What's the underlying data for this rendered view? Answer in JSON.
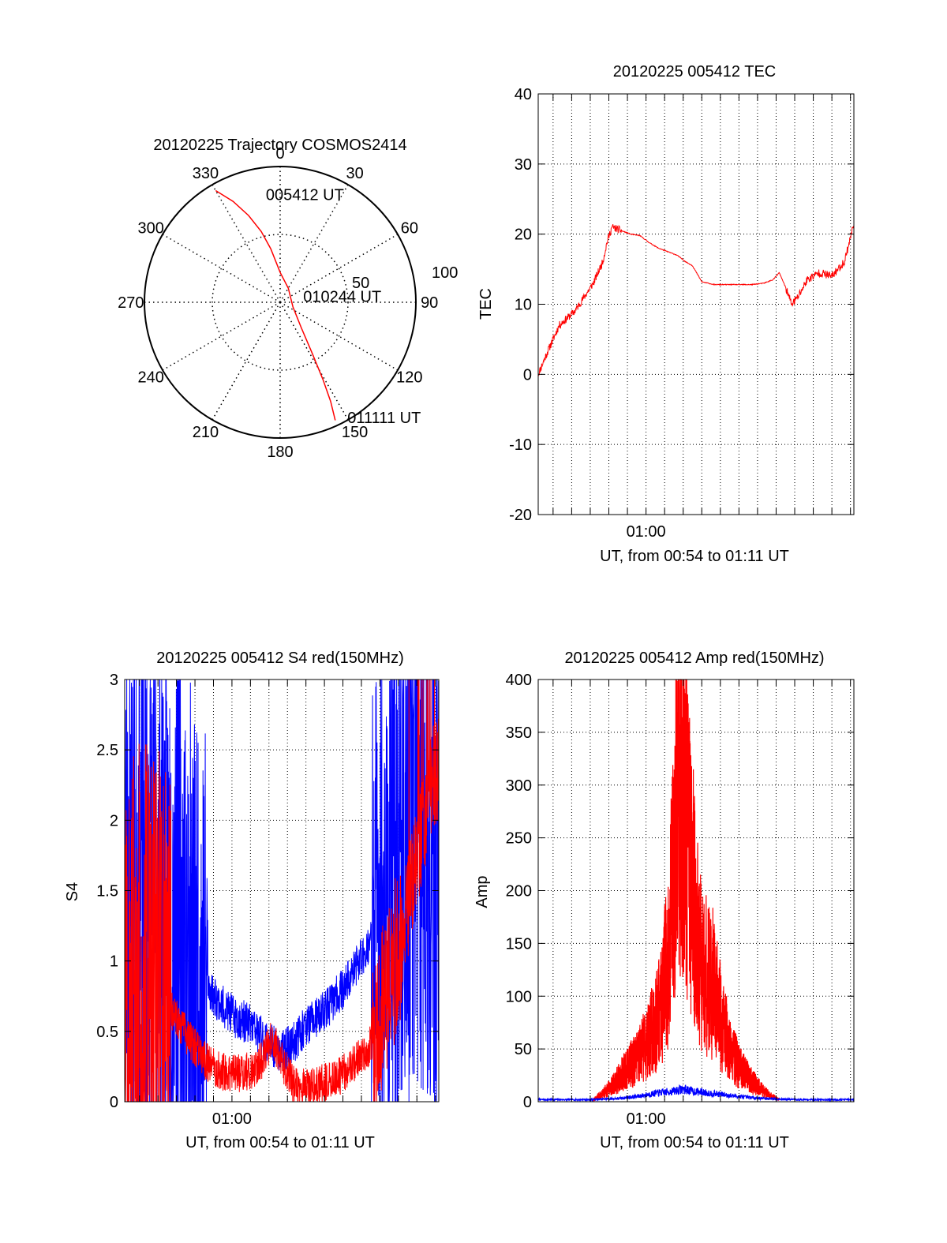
{
  "colors": {
    "red": "#ff0000",
    "blue": "#0000ff",
    "axis": "#000000"
  },
  "chart_data": [
    {
      "id": "trajectory",
      "type": "polar",
      "title": "20120225 Trajectory COSMOS2414",
      "angle_labels": [
        "0",
        "30",
        "60",
        "90",
        "120",
        "150",
        "180",
        "210",
        "240",
        "270",
        "300",
        "330"
      ],
      "radial_label": "50",
      "outer_radial_label": "100",
      "rlim": [
        0,
        100
      ],
      "grid": true,
      "series": [
        {
          "color": "red",
          "points": [
            {
              "az": 330,
              "r": 95
            },
            {
              "az": 335,
              "r": 82
            },
            {
              "az": 340,
              "r": 68
            },
            {
              "az": 345,
              "r": 54
            },
            {
              "az": 350,
              "r": 40
            },
            {
              "az": 0,
              "r": 22
            },
            {
              "az": 30,
              "r": 12
            },
            {
              "az": 110,
              "r": 10
            },
            {
              "az": 140,
              "r": 24
            },
            {
              "az": 148,
              "r": 45
            },
            {
              "az": 151,
              "r": 65
            },
            {
              "az": 153,
              "r": 82
            },
            {
              "az": 155,
              "r": 96
            }
          ]
        }
      ],
      "annotations": [
        {
          "text": "005412 UT",
          "az": 352,
          "r": 80
        },
        {
          "text": "010244 UT",
          "az": 75,
          "r": 17
        },
        {
          "text": "011111 UT",
          "az": 150,
          "r": 98
        }
      ]
    },
    {
      "id": "tec",
      "type": "line",
      "title": "20120225 005412 TEC",
      "ylabel": "TEC",
      "xlabel": "UT, from 00:54 to 01:11 UT",
      "x_tick_labels": [
        "01:00"
      ],
      "xlim": [
        "00:54:12",
        "01:11:11"
      ],
      "ylim": [
        -20,
        40
      ],
      "yticks": [
        -20,
        -10,
        0,
        10,
        20,
        30,
        40
      ],
      "grid": true,
      "series": [
        {
          "color": "red",
          "x": [
            "00:54:12",
            "00:54:40",
            "00:55:00",
            "00:55:20",
            "00:55:45",
            "00:56:10",
            "00:56:40",
            "00:57:10",
            "00:57:40",
            "00:57:55",
            "00:58:10",
            "00:58:40",
            "00:59:10",
            "00:59:40",
            "01:00:10",
            "01:00:40",
            "01:01:10",
            "01:01:40",
            "01:02:10",
            "01:02:30",
            "01:03:00",
            "01:03:40",
            "01:04:20",
            "01:05:00",
            "01:05:40",
            "01:06:20",
            "01:06:50",
            "01:07:10",
            "01:07:30",
            "01:07:50",
            "01:08:10",
            "01:08:40",
            "01:09:20",
            "01:10:00",
            "01:10:40",
            "01:11:11"
          ],
          "y": [
            0,
            3,
            5,
            7,
            8,
            9,
            11,
            13,
            16,
            19,
            21,
            20.5,
            20,
            19.8,
            18.8,
            18,
            17.5,
            17,
            16,
            15.5,
            13.2,
            12.8,
            12.8,
            12.8,
            12.8,
            13,
            13.5,
            14.5,
            12.5,
            10,
            11,
            13.5,
            14.5,
            14,
            16,
            21.5
          ]
        }
      ]
    },
    {
      "id": "s4",
      "type": "line",
      "title": "20120225 005412 S4 red(150MHz)",
      "ylabel": "S4",
      "xlabel": "UT, from 00:54 to 01:11 UT",
      "x_tick_labels": [
        "01:00"
      ],
      "xlim": [
        "00:54:12",
        "01:11:11"
      ],
      "ylim": [
        0,
        3
      ],
      "yticks": [
        0,
        0.5,
        1,
        1.5,
        2,
        2.5,
        3
      ],
      "ytick_labels": [
        "0",
        "0.5",
        "1",
        "1.5",
        "2",
        "2.5",
        "3"
      ],
      "grid": true,
      "series": [
        {
          "color": "blue",
          "x": [
            "00:54:12",
            "00:55:00",
            "00:56:00",
            "00:57:00",
            "00:57:40",
            "00:58:30",
            "00:59:20",
            "01:00:10",
            "01:01:00",
            "01:01:40",
            "01:02:10",
            "01:02:40",
            "01:03:20",
            "01:04:00",
            "01:04:40",
            "01:05:20",
            "01:06:00",
            "01:06:40",
            "01:07:20",
            "01:08:00",
            "01:08:40",
            "01:09:20",
            "01:10:00",
            "01:10:40",
            "01:11:11"
          ],
          "y": [
            1.5,
            1.6,
            1.5,
            1.4,
            1.0,
            0.85,
            0.7,
            0.6,
            0.55,
            0.45,
            0.4,
            0.35,
            0.42,
            0.55,
            0.6,
            0.7,
            0.8,
            0.95,
            1.1,
            1.3,
            1.6,
            1.9,
            2.1,
            2.0,
            1.8
          ]
        },
        {
          "color": "red",
          "x": [
            "00:54:12",
            "00:55:00",
            "00:56:00",
            "00:57:00",
            "00:57:40",
            "00:58:30",
            "00:59:20",
            "01:00:10",
            "01:01:00",
            "01:01:40",
            "01:02:10",
            "01:02:40",
            "01:03:20",
            "01:04:00",
            "01:04:40",
            "01:05:20",
            "01:06:00",
            "01:06:40",
            "01:07:20",
            "01:08:00",
            "01:08:40",
            "01:09:20",
            "01:10:00",
            "01:10:40",
            "01:11:11"
          ],
          "y": [
            0.6,
            0.9,
            0.8,
            0.6,
            0.45,
            0.3,
            0.22,
            0.2,
            0.22,
            0.3,
            0.45,
            0.3,
            0.12,
            0.1,
            0.12,
            0.15,
            0.2,
            0.28,
            0.35,
            0.6,
            0.9,
            1.3,
            1.7,
            2.2,
            2.4
          ]
        }
      ]
    },
    {
      "id": "amp",
      "type": "line",
      "title": "20120225 005412 Amp red(150MHz)",
      "ylabel": "Amp",
      "xlabel": "UT, from 00:54 to 01:11 UT",
      "x_tick_labels": [
        "01:00"
      ],
      "xlim": [
        "00:54:12",
        "01:11:11"
      ],
      "ylim": [
        0,
        400
      ],
      "yticks": [
        0,
        50,
        100,
        150,
        200,
        250,
        300,
        350,
        400
      ],
      "grid": true,
      "series": [
        {
          "color": "red",
          "x": [
            "00:57:10",
            "00:57:40",
            "00:58:10",
            "00:58:40",
            "00:59:10",
            "00:59:40",
            "01:00:10",
            "01:00:40",
            "01:01:10",
            "01:01:30",
            "01:01:50",
            "01:02:10",
            "01:02:30",
            "01:02:50",
            "01:03:10",
            "01:03:40",
            "01:04:10",
            "01:04:40",
            "01:05:10",
            "01:05:40",
            "01:06:10",
            "01:06:40",
            "01:07:10"
          ],
          "y": [
            2,
            8,
            15,
            25,
            35,
            45,
            60,
            80,
            130,
            220,
            330,
            280,
            200,
            140,
            120,
            110,
            70,
            45,
            30,
            20,
            12,
            6,
            2
          ]
        },
        {
          "color": "blue",
          "x": [
            "00:54:12",
            "00:57:00",
            "00:58:30",
            "00:59:30",
            "01:00:30",
            "01:01:30",
            "01:02:00",
            "01:02:30",
            "01:03:30",
            "01:04:30",
            "01:05:30",
            "01:06:30",
            "01:08:00",
            "01:11:11"
          ],
          "y": [
            2,
            2,
            3,
            5,
            8,
            10,
            12,
            10,
            8,
            6,
            4,
            3,
            2,
            2
          ]
        }
      ]
    }
  ]
}
